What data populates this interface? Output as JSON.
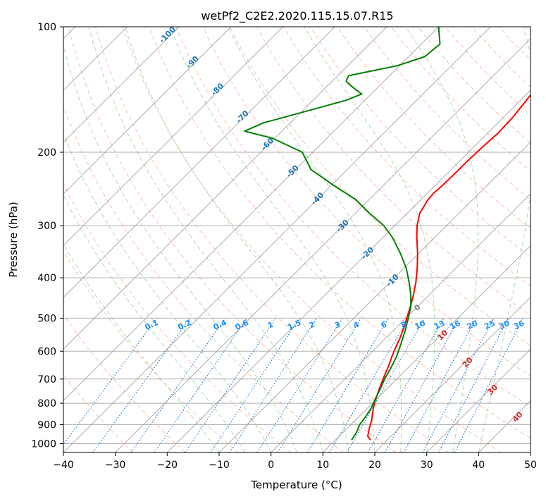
{
  "chart_data": {
    "type": "line",
    "subtype": "skew-T log-P diagram",
    "title": "wetPf2_C2E2.2020.115.15.07.R15",
    "xlabel": "Temperature (°C)",
    "ylabel": "Pressure (hPa)",
    "xlim": [
      -40,
      50
    ],
    "ylim": [
      1050,
      100
    ],
    "x_ticks": [
      -40,
      -30,
      -20,
      -10,
      0,
      10,
      20,
      30,
      40,
      50
    ],
    "x_tick_labels": [
      "−40",
      "−30",
      "−20",
      "−10",
      "0",
      "10",
      "20",
      "30",
      "40",
      "50"
    ],
    "y_ticks": [
      100,
      200,
      300,
      400,
      500,
      600,
      700,
      800,
      900,
      1000
    ],
    "y_tick_labels": [
      "100",
      "200",
      "300",
      "400",
      "500",
      "600",
      "700",
      "800",
      "900",
      "1000"
    ],
    "grid": true,
    "skew_factor": 35,
    "colors": {
      "temperature": "#ff0000",
      "dewpoint": "#008000",
      "isotherm": "#999999",
      "dry_adiabat": "#ff8c69",
      "moist_adiabat": "#90c890",
      "mixing_ratio": "#1f77d4",
      "label_blue": "#1f77b4",
      "label_red": "#d62728",
      "label_gray": "#808080",
      "mixing_label": "#1e90ff"
    },
    "series": [
      {
        "name": "Temperature",
        "color": "#ff0000",
        "pressure": [
          980,
          960,
          920,
          880,
          840,
          800,
          760,
          720,
          680,
          650,
          620,
          590,
          560,
          530,
          500,
          470,
          440,
          410,
          380,
          350,
          320,
          300,
          280,
          260,
          250,
          240,
          225,
          210,
          195,
          180,
          165,
          150,
          140,
          130,
          120,
          110,
          100
        ],
        "temperature": [
          16.8,
          15.5,
          14.3,
          13.2,
          11.8,
          10.4,
          9.2,
          8.0,
          6.8,
          5.9,
          4.8,
          3.8,
          2.8,
          1.6,
          0.2,
          -1.3,
          -3.0,
          -5.0,
          -7.4,
          -10.2,
          -13.5,
          -15.7,
          -17.6,
          -18.6,
          -18.8,
          -18.6,
          -18.5,
          -18.5,
          -18.3,
          -18.0,
          -18.2,
          -18.9,
          -19.4,
          -20.4,
          -21.8,
          -24.2,
          -27.0
        ]
      },
      {
        "name": "Dewpoint",
        "color": "#008000",
        "pressure": [
          980,
          940,
          900,
          860,
          820,
          780,
          740,
          700,
          660,
          620,
          580,
          540,
          500,
          470,
          440,
          410,
          380,
          350,
          320,
          300,
          280,
          260,
          240,
          220,
          200,
          185,
          178,
          170,
          160,
          150,
          145,
          142,
          138,
          135,
          131,
          124,
          118,
          110,
          100
        ],
        "temperature": [
          13.1,
          12.6,
          11.7,
          11.3,
          10.7,
          9.7,
          8.8,
          7.7,
          6.8,
          5.7,
          4.2,
          2.5,
          0.5,
          -1.2,
          -3.5,
          -6.3,
          -9.5,
          -13.5,
          -18.2,
          -22.1,
          -27.3,
          -32.5,
          -39.6,
          -47.0,
          -52.0,
          -60.5,
          -67.2,
          -65.2,
          -59.5,
          -53.6,
          -51.8,
          -53.5,
          -55.8,
          -57.3,
          -57.9,
          -50.5,
          -46.9,
          -46.4,
          -50.0
        ]
      }
    ],
    "isotherm_labels": {
      "values": [
        -100,
        -90,
        -80,
        -70,
        -60,
        -50,
        -40,
        -30,
        -20,
        -10,
        0,
        10,
        20,
        30,
        40
      ],
      "texts": [
        "-100",
        "-90",
        "-80",
        "-70",
        "-60",
        "-50",
        "-40",
        "-30",
        "-20",
        "-10",
        "0",
        "10",
        "20",
        "30",
        "40"
      ]
    },
    "mixing_ratio_labels": {
      "values": [
        0.1,
        0.2,
        0.4,
        0.6,
        1,
        1.5,
        2,
        3,
        4,
        6,
        8,
        10,
        13,
        16,
        20,
        25,
        30,
        36
      ],
      "texts": [
        "0.1",
        "0.2",
        "0.4",
        "0.6",
        "1",
        "1.5",
        "2",
        "3",
        "4",
        "6",
        "8",
        "10",
        "13",
        "16",
        "20",
        "25",
        "30",
        "36"
      ]
    }
  }
}
